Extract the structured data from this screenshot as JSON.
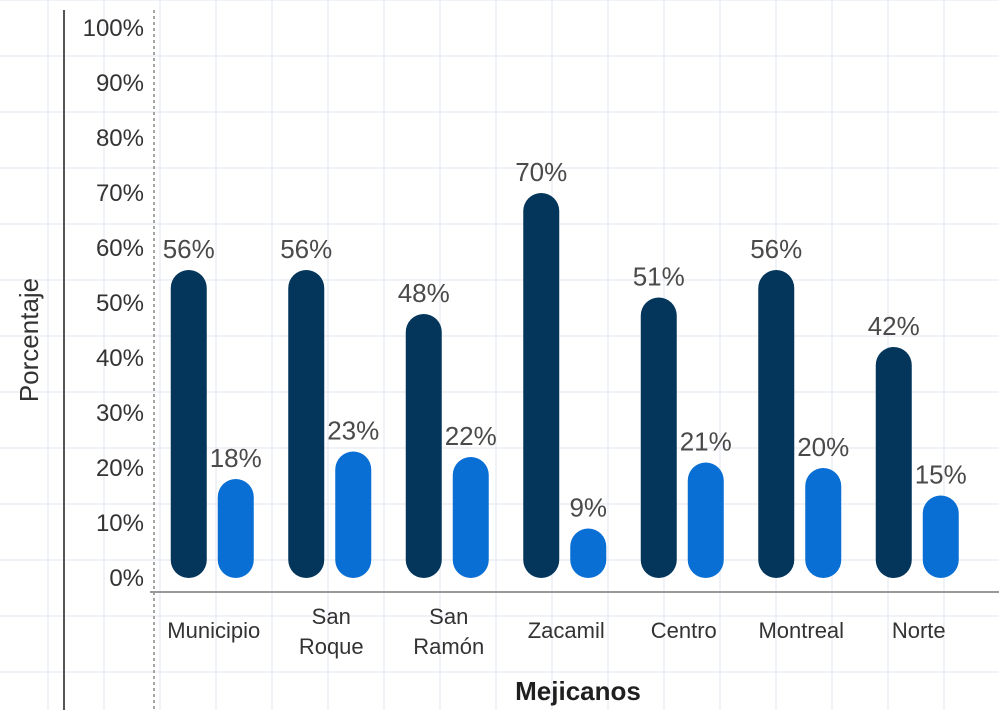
{
  "chart_data": {
    "type": "bar",
    "title": "",
    "xlabel": "Mejicanos",
    "ylabel": "Porcentaje",
    "ylim": [
      0,
      100
    ],
    "yticks": [
      "0%",
      "10%",
      "20%",
      "30%",
      "40%",
      "50%",
      "60%",
      "70%",
      "80%",
      "90%",
      "100%"
    ],
    "categories": [
      [
        "Municipio"
      ],
      [
        "San",
        "Roque"
      ],
      [
        "San",
        "Ramón"
      ],
      [
        "Zacamil"
      ],
      [
        "Centro"
      ],
      [
        "Montreal"
      ],
      [
        "Norte"
      ]
    ],
    "grid": true,
    "legend": "none",
    "series": [
      {
        "values": [
          56,
          56,
          48,
          70,
          51,
          56,
          42
        ],
        "labels": [
          "56%",
          "56%",
          "48%",
          "70%",
          "51%",
          "56%",
          "42%"
        ],
        "color": "#04365b"
      },
      {
        "values": [
          18,
          23,
          22,
          9,
          21,
          20,
          15
        ],
        "labels": [
          "18%",
          "23%",
          "22%",
          "9%",
          "21%",
          "20%",
          "15%"
        ],
        "color": "#0a6fd4"
      }
    ]
  }
}
